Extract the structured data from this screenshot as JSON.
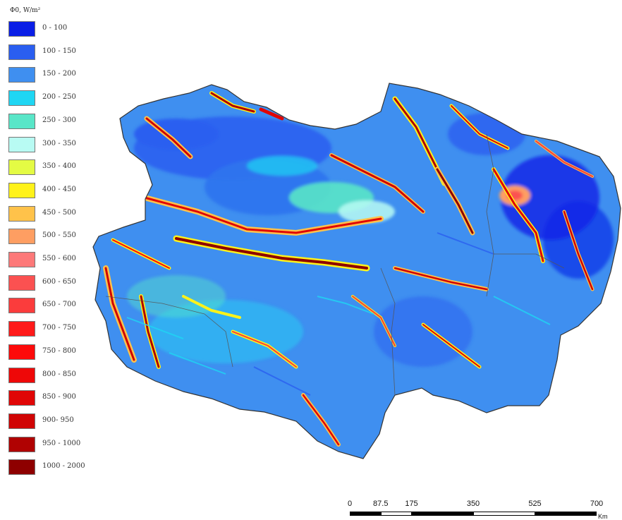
{
  "legend": {
    "title": "Φ0, W/m²",
    "items": [
      {
        "label": "0 - 100",
        "color": "#0a1ee6"
      },
      {
        "label": "100 - 150",
        "color": "#2a5ef0"
      },
      {
        "label": "150 - 200",
        "color": "#3f8ff0"
      },
      {
        "label": "200 - 250",
        "color": "#1fd6f3"
      },
      {
        "label": "250 - 300",
        "color": "#59e6c8"
      },
      {
        "label": "300 - 350",
        "color": "#b8fbf3"
      },
      {
        "label": "350 - 400",
        "color": "#e4fb44"
      },
      {
        "label": "400 - 450",
        "color": "#fff21a"
      },
      {
        "label": "450 - 500",
        "color": "#ffc24a"
      },
      {
        "label": "500 - 550",
        "color": "#fe9e62"
      },
      {
        "label": "550 - 600",
        "color": "#fd7979"
      },
      {
        "label": "600 - 650",
        "color": "#fb5151"
      },
      {
        "label": "650 - 700",
        "color": "#fb3c3c"
      },
      {
        "label": "700 - 750",
        "color": "#ff1a1a"
      },
      {
        "label": "750 - 800",
        "color": "#fd0a0a"
      },
      {
        "label": "800 - 850",
        "color": "#ee0808"
      },
      {
        "label": "850 - 900",
        "color": "#e00606"
      },
      {
        "label": "900- 950",
        "color": "#d00404"
      },
      {
        "label": "950 - 1000",
        "color": "#b00202"
      },
      {
        "label": "1000 - 2000",
        "color": "#8e0000"
      }
    ]
  },
  "scale_bar": {
    "ticks": [
      "0",
      "87.5",
      "175",
      "350",
      "525",
      "700"
    ],
    "tick_values": [
      0,
      87.5,
      175,
      350,
      525,
      700
    ],
    "unit": "Km"
  },
  "map": {
    "dominant_color": "#3f8ff0",
    "border_color": "#333333"
  }
}
